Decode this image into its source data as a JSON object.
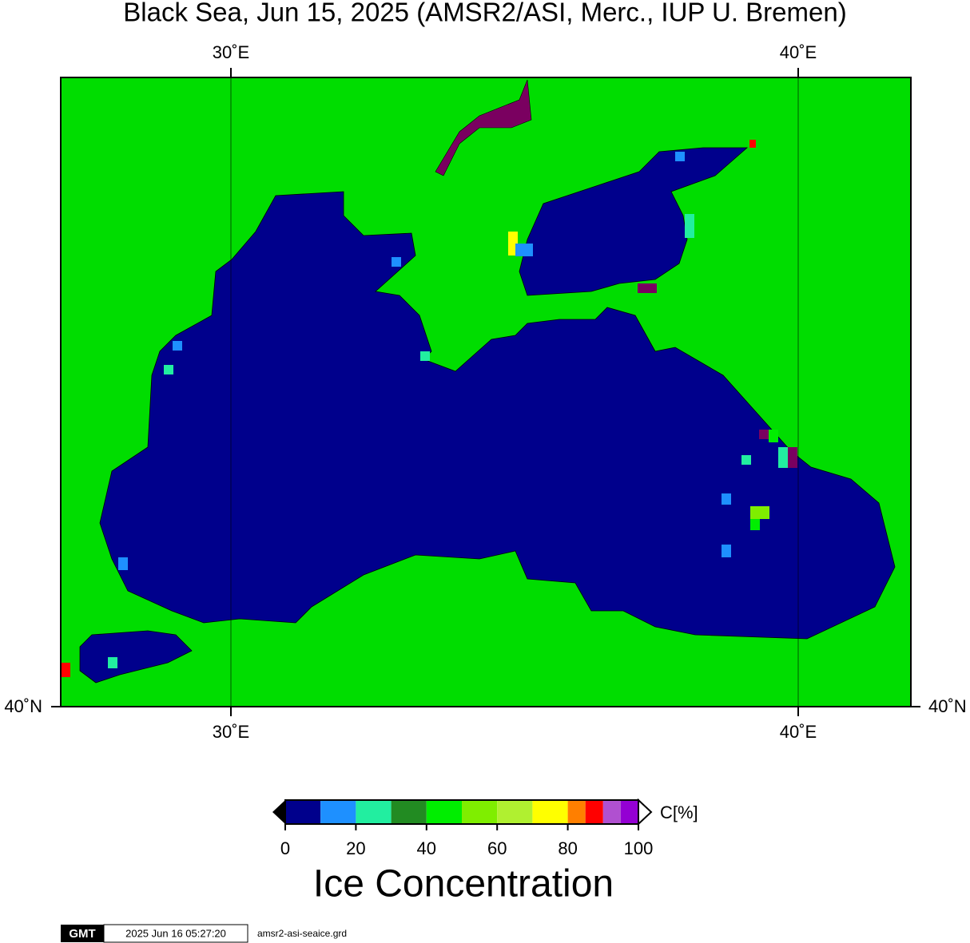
{
  "title": "Black Sea, Jun 15, 2025 (AMSR2/ASI, Merc., IUP U. Bremen)",
  "map": {
    "lon_labels": [
      "30˚E",
      "40˚E"
    ],
    "lat_labels": [
      "40˚N"
    ]
  },
  "colorbar": {
    "unit": "C[%]",
    "title": "Ice Concentration",
    "bounds": [
      0,
      10,
      20,
      30,
      40,
      50,
      60,
      70,
      80,
      85,
      90,
      95,
      100
    ],
    "colors": [
      "#00008c",
      "#1e90ff",
      "#22eea0",
      "#228b22",
      "#00ee00",
      "#7fee00",
      "#b0f030",
      "#ffff00",
      "#ff7f00",
      "#ff0000",
      "#b050d0",
      "#9400d3"
    ],
    "ticks": [
      0,
      20,
      40,
      60,
      80,
      100
    ]
  },
  "footer": {
    "logo": "GMT",
    "timestamp": "2025 Jun 16 05:27:20",
    "file": "amsr2-asi-seaice.grd"
  }
}
